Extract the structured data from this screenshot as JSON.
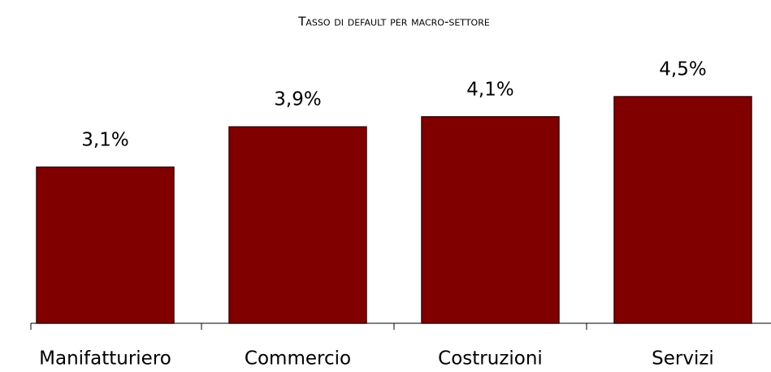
{
  "chart_data": {
    "type": "bar",
    "title": "Tasso di default per macro-settore",
    "categories": [
      "Manifatturiero",
      "Commercio",
      "Costruzioni",
      "Servizi"
    ],
    "values": [
      3.1,
      3.9,
      4.1,
      4.5
    ],
    "value_labels": [
      "3,1%",
      "3,9%",
      "4,1%",
      "4,5%"
    ],
    "color": "#800000",
    "ylim": [
      0,
      5
    ]
  }
}
